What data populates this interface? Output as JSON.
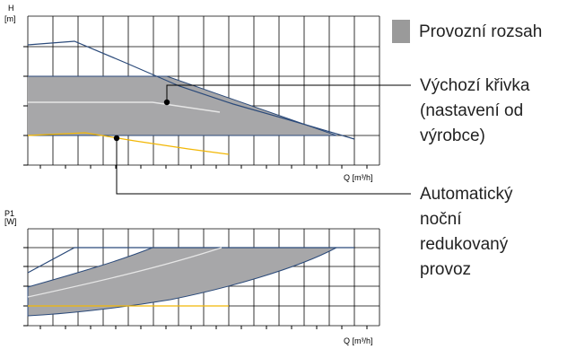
{
  "colors": {
    "region_fill": "#a7a7a9",
    "region_stroke": "#2b4a7a",
    "max_curve": "#2b4a7a",
    "default_curve": "#e6e6e6",
    "night_curve": "#f2b705",
    "grid": "#000000",
    "leader": "#000000",
    "legend_swatch": "#9a9a9a"
  },
  "top_chart": {
    "y_label_line1": "H",
    "y_label_line2": "[m]",
    "x_label": "Q [m³/h]"
  },
  "bottom_chart": {
    "y_label_line1": "P1",
    "y_label_line2": "[W]",
    "x_label": "Q [m³/h]"
  },
  "legend": {
    "operating_range": "Provozní rozsah"
  },
  "annotations": {
    "default_curve": [
      "Výchozí křivka",
      "(nastavení od",
      "výrobce)"
    ],
    "night_mode": [
      "Automatický",
      "noční",
      "redukovaný",
      "provoz"
    ]
  }
}
